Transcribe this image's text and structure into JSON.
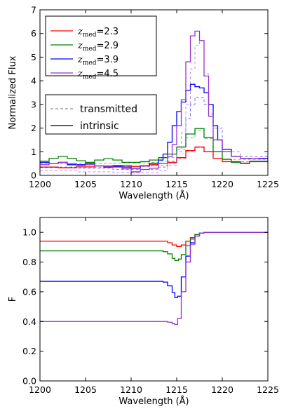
{
  "chart_data": [
    {
      "type": "line",
      "xlabel": "Wavelength (Å)",
      "ylabel": "Normalized Flux",
      "xlim": [
        1200,
        1225
      ],
      "ylim": [
        0,
        7
      ],
      "xticks": [
        "1200",
        "1205",
        "1210",
        "1215",
        "1220",
        "1225"
      ],
      "yticks": [
        "0",
        "1",
        "2",
        "3",
        "4",
        "5",
        "6",
        "7"
      ],
      "grid": false,
      "legend_placement": "top-left",
      "legend": [
        {
          "var": "z",
          "sub": "med",
          "value": "=2.3",
          "color": "#ff0000"
        },
        {
          "var": "z",
          "sub": "med",
          "value": "=2.9",
          "color": "#008000"
        },
        {
          "var": "z",
          "sub": "med",
          "value": "=3.9",
          "color": "#0000ff"
        },
        {
          "var": "z",
          "sub": "med",
          "value": "=4.5",
          "color": "#9933cc"
        }
      ],
      "style_legend": [
        {
          "label": "transmitted",
          "dash": true
        },
        {
          "label": "intrinsic",
          "dash": false
        }
      ],
      "series": [
        {
          "key": "z2.3",
          "color": "#ff0000",
          "style": "intrinsic",
          "points": [
            [
              1200,
              0.35
            ],
            [
              1202,
              0.32
            ],
            [
              1204,
              0.36
            ],
            [
              1206,
              0.4
            ],
            [
              1208,
              0.42
            ],
            [
              1210,
              0.38
            ],
            [
              1211,
              0.4
            ],
            [
              1212,
              0.45
            ],
            [
              1213,
              0.5
            ],
            [
              1214,
              0.55
            ],
            [
              1215,
              0.75
            ],
            [
              1216,
              1.05
            ],
            [
              1217,
              1.2
            ],
            [
              1218,
              1.0
            ],
            [
              1219,
              0.72
            ],
            [
              1220,
              0.58
            ],
            [
              1222,
              0.52
            ],
            [
              1223,
              0.58
            ],
            [
              1225,
              0.55
            ]
          ]
        },
        {
          "key": "z2.3",
          "color": "#ff0000",
          "style": "transmitted",
          "points": [
            [
              1200,
              0.33
            ],
            [
              1204,
              0.34
            ],
            [
              1208,
              0.38
            ],
            [
              1212,
              0.42
            ],
            [
              1214,
              0.5
            ],
            [
              1215,
              0.7
            ],
            [
              1216,
              1.0
            ],
            [
              1217,
              1.18
            ],
            [
              1218,
              1.0
            ],
            [
              1220,
              0.58
            ],
            [
              1225,
              0.55
            ]
          ]
        },
        {
          "key": "z2.9",
          "color": "#008000",
          "style": "intrinsic",
          "points": [
            [
              1200,
              0.6
            ],
            [
              1201,
              0.72
            ],
            [
              1202,
              0.8
            ],
            [
              1203,
              0.72
            ],
            [
              1204,
              0.62
            ],
            [
              1205,
              0.55
            ],
            [
              1206,
              0.65
            ],
            [
              1207,
              0.7
            ],
            [
              1208,
              0.65
            ],
            [
              1209,
              0.55
            ],
            [
              1210,
              0.55
            ],
            [
              1211,
              0.58
            ],
            [
              1212,
              0.65
            ],
            [
              1213,
              0.75
            ],
            [
              1214,
              0.9
            ],
            [
              1215,
              1.2
            ],
            [
              1216,
              1.75
            ],
            [
              1217,
              1.98
            ],
            [
              1218,
              1.6
            ],
            [
              1219,
              1.0
            ],
            [
              1220,
              0.68
            ],
            [
              1221,
              0.55
            ],
            [
              1222,
              0.5
            ],
            [
              1223,
              0.6
            ],
            [
              1225,
              0.7
            ]
          ]
        },
        {
          "key": "z2.9",
          "color": "#008000",
          "style": "transmitted",
          "points": [
            [
              1200,
              0.5
            ],
            [
              1204,
              0.5
            ],
            [
              1208,
              0.52
            ],
            [
              1212,
              0.55
            ],
            [
              1213,
              0.6
            ],
            [
              1214,
              0.75
            ],
            [
              1215,
              1.1
            ],
            [
              1216,
              1.6
            ],
            [
              1217,
              1.9
            ],
            [
              1218,
              1.55
            ],
            [
              1219,
              1.0
            ],
            [
              1220,
              0.68
            ],
            [
              1225,
              0.7
            ]
          ]
        },
        {
          "key": "z3.9",
          "color": "#0000ff",
          "style": "intrinsic",
          "points": [
            [
              1200,
              0.55
            ],
            [
              1201,
              0.5
            ],
            [
              1202,
              0.55
            ],
            [
              1203,
              0.45
            ],
            [
              1204,
              0.45
            ],
            [
              1205,
              0.5
            ],
            [
              1206,
              0.4
            ],
            [
              1207,
              0.35
            ],
            [
              1208,
              0.38
            ],
            [
              1209,
              0.35
            ],
            [
              1210,
              0.3
            ],
            [
              1211,
              0.4
            ],
            [
              1212,
              0.5
            ],
            [
              1213,
              0.65
            ],
            [
              1213.5,
              0.9
            ],
            [
              1214,
              1.4
            ],
            [
              1214.5,
              2.1
            ],
            [
              1215,
              2.7
            ],
            [
              1215.5,
              3.1
            ],
            [
              1216,
              3.6
            ],
            [
              1216.5,
              3.85
            ],
            [
              1217,
              3.75
            ],
            [
              1217.5,
              3.7
            ],
            [
              1218,
              3.5
            ],
            [
              1218.5,
              3.0
            ],
            [
              1219,
              2.1
            ],
            [
              1219.5,
              1.5
            ],
            [
              1220,
              1.1
            ],
            [
              1221,
              0.8
            ],
            [
              1222,
              0.72
            ],
            [
              1223,
              0.7
            ],
            [
              1224,
              0.72
            ],
            [
              1225,
              0.75
            ]
          ]
        },
        {
          "key": "z3.9",
          "color": "#0000ff",
          "style": "transmitted",
          "points": [
            [
              1200,
              0.35
            ],
            [
              1204,
              0.3
            ],
            [
              1208,
              0.25
            ],
            [
              1211,
              0.25
            ],
            [
              1213,
              0.35
            ],
            [
              1214,
              0.6
            ],
            [
              1215,
              1.2
            ],
            [
              1216,
              2.4
            ],
            [
              1216.5,
              3.0
            ],
            [
              1217,
              3.3
            ],
            [
              1217.5,
              3.3
            ],
            [
              1218,
              3.0
            ],
            [
              1219,
              2.0
            ],
            [
              1220,
              1.1
            ],
            [
              1221,
              0.8
            ],
            [
              1225,
              0.75
            ]
          ]
        },
        {
          "key": "z4.5",
          "color": "#9933cc",
          "style": "intrinsic",
          "points": [
            [
              1200,
              0.45
            ],
            [
              1201,
              0.5
            ],
            [
              1202,
              0.55
            ],
            [
              1203,
              0.5
            ],
            [
              1204,
              0.42
            ],
            [
              1205,
              0.45
            ],
            [
              1206,
              0.4
            ],
            [
              1207,
              0.38
            ],
            [
              1208,
              0.35
            ],
            [
              1209,
              0.28
            ],
            [
              1210,
              0.15
            ],
            [
              1211,
              0.25
            ],
            [
              1212,
              0.3
            ],
            [
              1213,
              0.5
            ],
            [
              1214,
              0.8
            ],
            [
              1214.5,
              1.3
            ],
            [
              1215,
              2.1
            ],
            [
              1215.5,
              3.2
            ],
            [
              1216,
              4.8
            ],
            [
              1216.5,
              5.9
            ],
            [
              1217,
              6.1
            ],
            [
              1217.5,
              5.7
            ],
            [
              1218,
              4.2
            ],
            [
              1218.5,
              2.5
            ],
            [
              1219,
              1.5
            ],
            [
              1220,
              1.0
            ],
            [
              1221,
              0.8
            ],
            [
              1222,
              0.72
            ],
            [
              1223,
              0.7
            ],
            [
              1225,
              0.75
            ]
          ]
        },
        {
          "key": "z4.5",
          "color": "#9933cc",
          "style": "transmitted",
          "points": [
            [
              1200,
              0.2
            ],
            [
              1204,
              0.15
            ],
            [
              1208,
              0.12
            ],
            [
              1211,
              0.12
            ],
            [
              1213,
              0.2
            ],
            [
              1214,
              0.4
            ],
            [
              1215,
              1.0
            ],
            [
              1215.5,
              1.8
            ],
            [
              1216,
              3.0
            ],
            [
              1216.5,
              4.5
            ],
            [
              1217,
              5.5
            ],
            [
              1217.5,
              5.7
            ],
            [
              1218,
              4.3
            ],
            [
              1218.5,
              2.6
            ],
            [
              1219,
              1.5
            ],
            [
              1220,
              1.0
            ],
            [
              1222,
              0.72
            ],
            [
              1225,
              0.75
            ]
          ]
        }
      ]
    },
    {
      "type": "line",
      "xlabel": "Wavelength (Å)",
      "ylabel": "F",
      "xlim": [
        1200,
        1225
      ],
      "ylim": [
        0,
        1.1
      ],
      "xticks": [
        "1200",
        "1205",
        "1210",
        "1215",
        "1220",
        "1225"
      ],
      "yticks": [
        "0.0",
        "0.2",
        "0.4",
        "0.6",
        "0.8",
        "1.0"
      ],
      "grid": false,
      "series": [
        {
          "key": "z2.3",
          "color": "#ff0000",
          "points": [
            [
              1200,
              0.94
            ],
            [
              1213,
              0.94
            ],
            [
              1214,
              0.93
            ],
            [
              1214.5,
              0.915
            ],
            [
              1215,
              0.905
            ],
            [
              1215.5,
              0.915
            ],
            [
              1216,
              0.94
            ],
            [
              1216.5,
              0.965
            ],
            [
              1217,
              0.985
            ],
            [
              1217.5,
              0.995
            ],
            [
              1218,
              1.0
            ],
            [
              1225,
              1.0
            ]
          ]
        },
        {
          "key": "z2.9",
          "color": "#008000",
          "points": [
            [
              1200,
              0.875
            ],
            [
              1213,
              0.875
            ],
            [
              1213.5,
              0.87
            ],
            [
              1214,
              0.855
            ],
            [
              1214.5,
              0.825
            ],
            [
              1214.8,
              0.81
            ],
            [
              1215.2,
              0.82
            ],
            [
              1215.5,
              0.85
            ],
            [
              1216,
              0.91
            ],
            [
              1216.5,
              0.955
            ],
            [
              1217,
              0.985
            ],
            [
              1217.5,
              0.995
            ],
            [
              1218,
              1.0
            ],
            [
              1225,
              1.0
            ]
          ]
        },
        {
          "key": "z3.9",
          "color": "#0000ff",
          "points": [
            [
              1200,
              0.67
            ],
            [
              1213,
              0.67
            ],
            [
              1213.5,
              0.665
            ],
            [
              1214,
              0.64
            ],
            [
              1214.5,
              0.595
            ],
            [
              1214.8,
              0.56
            ],
            [
              1215.1,
              0.57
            ],
            [
              1215.5,
              0.7
            ],
            [
              1216,
              0.84
            ],
            [
              1216.5,
              0.93
            ],
            [
              1217,
              0.975
            ],
            [
              1217.5,
              0.995
            ],
            [
              1218,
              1.0
            ],
            [
              1225,
              1.0
            ]
          ]
        },
        {
          "key": "z4.5",
          "color": "#9933cc",
          "points": [
            [
              1200,
              0.4
            ],
            [
              1213,
              0.4
            ],
            [
              1214,
              0.395
            ],
            [
              1214.5,
              0.385
            ],
            [
              1214.8,
              0.38
            ],
            [
              1215.1,
              0.42
            ],
            [
              1215.5,
              0.6
            ],
            [
              1216,
              0.8
            ],
            [
              1216.5,
              0.92
            ],
            [
              1217,
              0.975
            ],
            [
              1217.5,
              0.995
            ],
            [
              1218,
              1.0
            ],
            [
              1225,
              1.0
            ]
          ]
        }
      ]
    }
  ]
}
